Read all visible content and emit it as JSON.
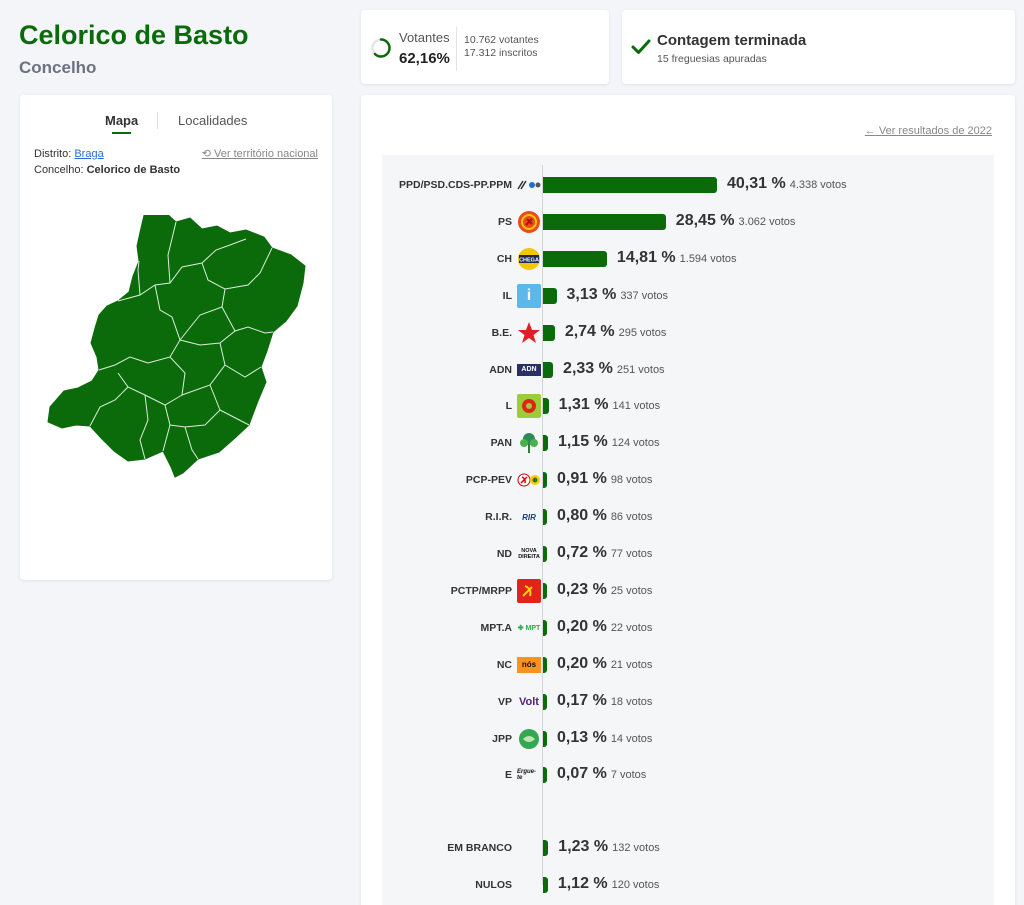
{
  "header": {
    "title": "Celorico de Basto",
    "subtitle": "Concelho"
  },
  "turnout": {
    "label": "Votantes",
    "percent": "62,16%",
    "percent_value": 62.16,
    "voters": "10.762 votantes",
    "registered": "17.312 inscritos"
  },
  "count": {
    "title": "Contagem terminada",
    "subtitle": "15 freguesias apuradas"
  },
  "map_panel": {
    "tabs": [
      "Mapa",
      "Localidades"
    ],
    "district_label": "Distrito:",
    "district_value": "Braga",
    "municipality_label": "Concelho:",
    "municipality_value": "Celorico de Basto",
    "national_link": "Ver território nacional"
  },
  "results": {
    "previous_link": "Ver resultados de 2022",
    "colors": {
      "bar": "#0b6b0b"
    },
    "parties": [
      {
        "name": "PPD/PSD.CDS-PP.PPM",
        "pct": "40,31 %",
        "votes": "4.338 votos",
        "value": 40.31,
        "logo": "psd-logo"
      },
      {
        "name": "PS",
        "pct": "28,45 %",
        "votes": "3.062 votos",
        "value": 28.45,
        "logo": "ps-logo"
      },
      {
        "name": "CH",
        "pct": "14,81 %",
        "votes": "1.594 votos",
        "value": 14.81,
        "logo": "chega-logo"
      },
      {
        "name": "IL",
        "pct": "3,13 %",
        "votes": "337 votos",
        "value": 3.13,
        "logo": "il-logo"
      },
      {
        "name": "B.E.",
        "pct": "2,74 %",
        "votes": "295 votos",
        "value": 2.74,
        "logo": "be-star-logo"
      },
      {
        "name": "ADN",
        "pct": "2,33 %",
        "votes": "251 votos",
        "value": 2.33,
        "logo": "adn-logo"
      },
      {
        "name": "L",
        "pct": "1,31 %",
        "votes": "141 votos",
        "value": 1.31,
        "logo": "livre-logo"
      },
      {
        "name": "PAN",
        "pct": "1,15 %",
        "votes": "124 votos",
        "value": 1.15,
        "logo": "pan-tree-logo"
      },
      {
        "name": "PCP-PEV",
        "pct": "0,91 %",
        "votes": "98 votos",
        "value": 0.91,
        "logo": "pcp-logo"
      },
      {
        "name": "R.I.R.",
        "pct": "0,80 %",
        "votes": "86 votos",
        "value": 0.8,
        "logo": "rir-logo"
      },
      {
        "name": "ND",
        "pct": "0,72 %",
        "votes": "77 votos",
        "value": 0.72,
        "logo": "nd-logo"
      },
      {
        "name": "PCTP/MRPP",
        "pct": "0,23 %",
        "votes": "25 votos",
        "value": 0.23,
        "logo": "mrpp-logo"
      },
      {
        "name": "MPT.A",
        "pct": "0,20 %",
        "votes": "22 votos",
        "value": 0.2,
        "logo": "mpt-logo"
      },
      {
        "name": "NC",
        "pct": "0,20 %",
        "votes": "21 votos",
        "value": 0.2,
        "logo": "nc-logo"
      },
      {
        "name": "VP",
        "pct": "0,17 %",
        "votes": "18 votos",
        "value": 0.17,
        "logo": "volt-logo"
      },
      {
        "name": "JPP",
        "pct": "0,13 %",
        "votes": "14 votos",
        "value": 0.13,
        "logo": "jpp-logo"
      },
      {
        "name": "E",
        "pct": "0,07 %",
        "votes": "7 votos",
        "value": 0.07,
        "logo": "ergue-te-logo"
      }
    ],
    "other": [
      {
        "name": "EM BRANCO",
        "pct": "1,23 %",
        "votes": "132 votos",
        "value": 1.23
      },
      {
        "name": "NULOS",
        "pct": "1,12 %",
        "votes": "120 votos",
        "value": 1.12
      }
    ],
    "logo_text": {
      "chega": "CHEGA",
      "il": "i",
      "adn": "ADN",
      "rir": "RIR",
      "nd": "NOVA DIREITA",
      "mpt": "MPT",
      "nc": "nós",
      "volt": "Volt",
      "ergue": "Ergue-te"
    }
  }
}
